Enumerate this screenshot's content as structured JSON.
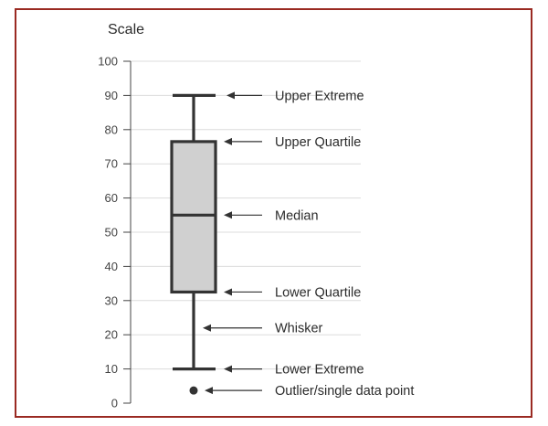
{
  "colors": {
    "frame": "#9a2a22",
    "ink": "#333333",
    "box_fill": "#d0d0d0",
    "grid": "#dcdcdc"
  },
  "chart_data": {
    "type": "box",
    "axis_title": "Scale",
    "ylim": [
      0,
      100
    ],
    "ticks": [
      "0",
      "10",
      "20",
      "30",
      "40",
      "50",
      "60",
      "70",
      "80",
      "90",
      "100"
    ],
    "grid": true,
    "box": {
      "whisker_low": 10,
      "q1": 32.5,
      "median": 55,
      "q3": 76.5,
      "whisker_high": 90,
      "outlier": 3.7,
      "whisker_mid": 22
    },
    "annotations": [
      {
        "label": "Upper Extreme",
        "ref": "whisker_high"
      },
      {
        "label": "Upper Quartile",
        "ref": "q3"
      },
      {
        "label": "Median",
        "ref": "median"
      },
      {
        "label": "Lower Quartile",
        "ref": "q1"
      },
      {
        "label": "Whisker",
        "ref": "whisker_mid"
      },
      {
        "label": "Lower Extreme",
        "ref": "whisker_low"
      },
      {
        "label": "Outlier/single data point",
        "ref": "outlier"
      }
    ]
  }
}
